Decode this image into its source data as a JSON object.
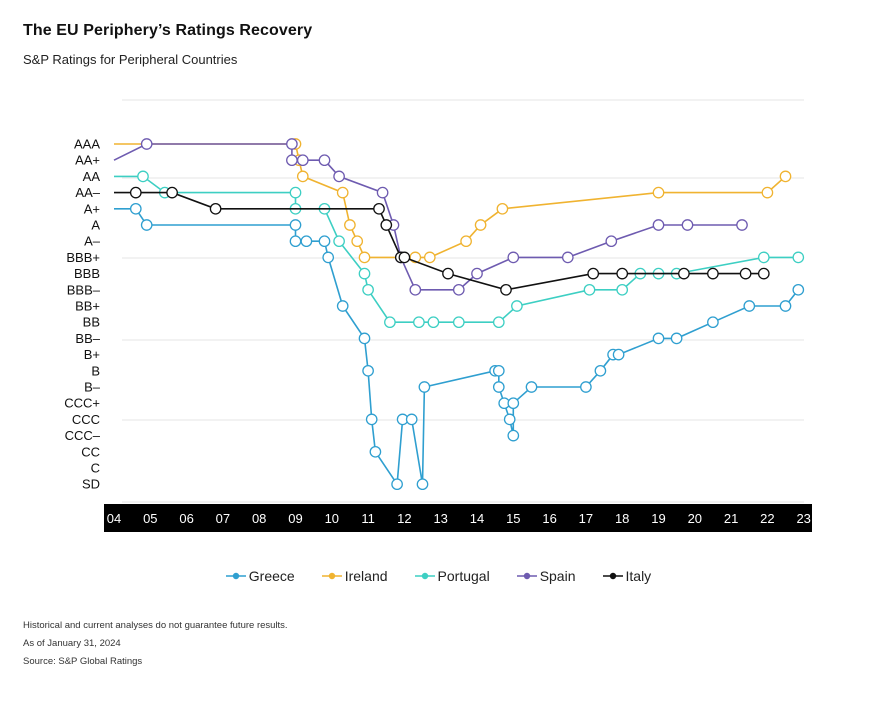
{
  "header": {
    "title": "The EU Periphery’s Ratings Recovery",
    "subtitle": "S&P Ratings for Peripheral Countries"
  },
  "footnotes": {
    "disclaimer": "Historical and current analyses do not guarantee future results.",
    "as_of": "As of January 31, 2024",
    "source": "Source: S&P Global Ratings"
  },
  "chart_data": {
    "type": "line",
    "title": "The EU Periphery’s Ratings Recovery",
    "subtitle": "S&P Ratings for Peripheral Countries",
    "y_categories": [
      "AAA",
      "AA+",
      "AA",
      "AA–",
      "A+",
      "A",
      "A–",
      "BBB+",
      "BBB",
      "BBB–",
      "BB+",
      "BB",
      "BB–",
      "B+",
      "B",
      "B–",
      "CCC+",
      "CCC",
      "CCC–",
      "CC",
      "C",
      "SD"
    ],
    "x_ticks": [
      "04",
      "05",
      "06",
      "07",
      "08",
      "09",
      "10",
      "11",
      "12",
      "13",
      "14",
      "15",
      "16",
      "17",
      "18",
      "19",
      "20",
      "21",
      "22",
      "23"
    ],
    "xlim": [
      2004,
      2023.5
    ],
    "legend_position": "bottom",
    "series": [
      {
        "name": "Greece",
        "color": "#2f9fd0",
        "points": [
          [
            2004.0,
            "A+"
          ],
          [
            2004.6,
            "A+"
          ],
          [
            2004.9,
            "A"
          ],
          [
            2009.0,
            "A"
          ],
          [
            2009.0,
            "A–"
          ],
          [
            2009.3,
            "A–"
          ],
          [
            2009.8,
            "A–"
          ],
          [
            2009.9,
            "BBB+"
          ],
          [
            2010.3,
            "BB+"
          ],
          [
            2010.9,
            "BB–"
          ],
          [
            2011.0,
            "B"
          ],
          [
            2011.1,
            "CCC"
          ],
          [
            2011.2,
            "CC"
          ],
          [
            2011.8,
            "SD"
          ],
          [
            2011.95,
            "CCC"
          ],
          [
            2012.2,
            "CCC"
          ],
          [
            2012.5,
            "SD"
          ],
          [
            2012.55,
            "B–"
          ],
          [
            2014.5,
            "B"
          ],
          [
            2014.6,
            "B"
          ],
          [
            2014.6,
            "B–"
          ],
          [
            2014.75,
            "CCC+"
          ],
          [
            2014.9,
            "CCC"
          ],
          [
            2015.0,
            "CCC–"
          ],
          [
            2015.0,
            "CCC+"
          ],
          [
            2015.5,
            "B–"
          ],
          [
            2017.0,
            "B–"
          ],
          [
            2017.4,
            "B"
          ],
          [
            2017.75,
            "B+"
          ],
          [
            2017.9,
            "B+"
          ],
          [
            2019.0,
            "BB–"
          ],
          [
            2019.5,
            "BB–"
          ],
          [
            2020.5,
            "BB"
          ],
          [
            2021.5,
            "BB+"
          ],
          [
            2022.5,
            "BB+"
          ],
          [
            2022.85,
            "BBB–"
          ]
        ]
      },
      {
        "name": "Ireland",
        "color": "#f0b330",
        "points": [
          [
            2004.0,
            "AAA"
          ],
          [
            2009.0,
            "AAA"
          ],
          [
            2009.1,
            "AA+"
          ],
          [
            2009.2,
            "AA"
          ],
          [
            2010.3,
            "AA–"
          ],
          [
            2010.5,
            "A"
          ],
          [
            2010.7,
            "A–"
          ],
          [
            2010.9,
            "BBB+"
          ],
          [
            2012.3,
            "BBB+"
          ],
          [
            2012.7,
            "BBB+"
          ],
          [
            2013.7,
            "A–"
          ],
          [
            2014.1,
            "A"
          ],
          [
            2014.7,
            "A+"
          ],
          [
            2019.0,
            "AA–"
          ],
          [
            2022.0,
            "AA–"
          ],
          [
            2022.5,
            "AA"
          ]
        ]
      },
      {
        "name": "Portugal",
        "color": "#3dcfc3",
        "points": [
          [
            2004.0,
            "AA"
          ],
          [
            2004.8,
            "AA"
          ],
          [
            2005.4,
            "AA–"
          ],
          [
            2009.0,
            "AA–"
          ],
          [
            2009.0,
            "A+"
          ],
          [
            2009.8,
            "A+"
          ],
          [
            2010.2,
            "A–"
          ],
          [
            2010.9,
            "BBB"
          ],
          [
            2011.0,
            "BBB–"
          ],
          [
            2011.6,
            "BB"
          ],
          [
            2012.4,
            "BB"
          ],
          [
            2012.8,
            "BB"
          ],
          [
            2013.5,
            "BB"
          ],
          [
            2014.6,
            "BB"
          ],
          [
            2015.1,
            "BB+"
          ],
          [
            2017.1,
            "BBB–"
          ],
          [
            2018.0,
            "BBB–"
          ],
          [
            2018.5,
            "BBB"
          ],
          [
            2019.0,
            "BBB"
          ],
          [
            2019.5,
            "BBB"
          ],
          [
            2021.9,
            "BBB+"
          ],
          [
            2022.85,
            "BBB+"
          ]
        ]
      },
      {
        "name": "Spain",
        "color": "#6e5bb0",
        "points": [
          [
            2004.0,
            "AA+"
          ],
          [
            2004.9,
            "AAA"
          ],
          [
            2008.9,
            "AAA"
          ],
          [
            2008.9,
            "AA+"
          ],
          [
            2009.2,
            "AA+"
          ],
          [
            2009.8,
            "AA+"
          ],
          [
            2010.2,
            "AA"
          ],
          [
            2011.4,
            "AA–"
          ],
          [
            2011.7,
            "A"
          ],
          [
            2011.9,
            "BBB+"
          ],
          [
            2012.3,
            "BBB–"
          ],
          [
            2013.5,
            "BBB–"
          ],
          [
            2014.0,
            "BBB"
          ],
          [
            2015.0,
            "BBB+"
          ],
          [
            2016.5,
            "BBB+"
          ],
          [
            2017.7,
            "A–"
          ],
          [
            2019.0,
            "A"
          ],
          [
            2019.8,
            "A"
          ],
          [
            2021.3,
            "A"
          ]
        ]
      },
      {
        "name": "Italy",
        "color": "#111111",
        "points": [
          [
            2004.0,
            "AA–"
          ],
          [
            2004.6,
            "AA–"
          ],
          [
            2005.6,
            "AA–"
          ],
          [
            2006.8,
            "A+"
          ],
          [
            2011.3,
            "A+"
          ],
          [
            2011.5,
            "A"
          ],
          [
            2011.9,
            "BBB+"
          ],
          [
            2012.0,
            "BBB+"
          ],
          [
            2013.2,
            "BBB"
          ],
          [
            2014.8,
            "BBB–"
          ],
          [
            2017.2,
            "BBB"
          ],
          [
            2018.0,
            "BBB"
          ],
          [
            2019.7,
            "BBB"
          ],
          [
            2020.5,
            "BBB"
          ],
          [
            2021.4,
            "BBB"
          ],
          [
            2021.9,
            "BBB"
          ]
        ]
      }
    ],
    "legend": [
      "Greece",
      "Ireland",
      "Portugal",
      "Spain",
      "Italy"
    ]
  }
}
